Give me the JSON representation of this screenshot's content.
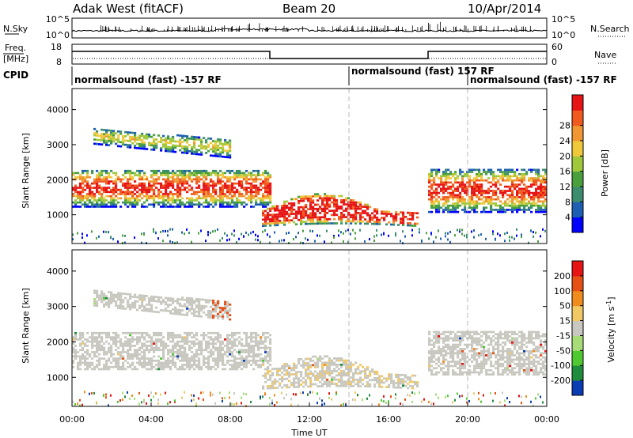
{
  "header": {
    "radar": "Adak West (fitACF)",
    "beam": "Beam 20",
    "date": "10/Apr/2014"
  },
  "noise_panel": {
    "left_label": "N.Sky",
    "right_label": "N.Search",
    "left_ticks": [
      "10^5",
      "10^0"
    ],
    "right_ticks": [
      "10^5",
      "10^0"
    ]
  },
  "freq_panel": {
    "left_label_1": "Freq.",
    "left_label_2": "[MHz]",
    "right_label": "Nave",
    "left_ticks": [
      "18",
      "8"
    ],
    "right_ticks": [
      "60",
      "0"
    ]
  },
  "cpid_panel": {
    "label": "CPID",
    "segments": [
      {
        "text": "normalsound (fast) -157 RF",
        "start_hour": 0
      },
      {
        "text": "normalsound (fast) 157 RF",
        "start_hour": 14
      },
      {
        "text": "normalsound (fast) -157 RF",
        "start_hour": 20
      }
    ]
  },
  "x_axis": {
    "label": "Time UT",
    "ticks": [
      "00:00",
      "04:00",
      "08:00",
      "12:00",
      "16:00",
      "20:00",
      "00:00"
    ],
    "tick_hours": [
      0,
      4,
      8,
      12,
      16,
      20,
      24
    ]
  },
  "chart_data": [
    {
      "type": "heatmap",
      "title": "Power",
      "xlabel": "Time UT",
      "ylabel": "Slant Range [km]",
      "xlim_hours": [
        0,
        24
      ],
      "ylim_km": [
        180,
        4600
      ],
      "y_ticks": [
        1000,
        2000,
        3000,
        4000
      ],
      "colorbar": {
        "label": "Power [dB]",
        "ticks": [
          4,
          8,
          12,
          16,
          20,
          24,
          28
        ],
        "range": [
          0,
          30
        ],
        "colors": [
          "#0000ff",
          "#1e5fb4",
          "#3c8c6e",
          "#4aa03c",
          "#a0c83c",
          "#f0c83c",
          "#f09632",
          "#f05a1e",
          "#e61414"
        ]
      },
      "features": [
        {
          "name": "upper-band",
          "t_start": 1.0,
          "t_end": 8.0,
          "range_km": [
            2700,
            3550
          ]
        },
        {
          "name": "mid-band-left",
          "t_start": 0.0,
          "t_end": 10.0,
          "range_km": [
            1200,
            2300
          ]
        },
        {
          "name": "day-band",
          "t_start": 9.5,
          "t_end": 17.5,
          "range_km": [
            600,
            1650
          ]
        },
        {
          "name": "mid-band-right",
          "t_start": 18.0,
          "t_end": 24.0,
          "range_km": [
            1050,
            2300
          ]
        }
      ]
    },
    {
      "type": "heatmap",
      "title": "Velocity",
      "xlabel": "Time UT",
      "ylabel": "Slant Range [km]",
      "xlim_hours": [
        0,
        24
      ],
      "ylim_km": [
        180,
        4600
      ],
      "y_ticks": [
        1000,
        2000,
        3000,
        4000
      ],
      "colorbar": {
        "label": "Velocity [m s^-1]",
        "ticks": [
          200,
          100,
          50,
          15,
          -15,
          -50,
          -100,
          -200
        ],
        "colors": [
          "#0a3cb4",
          "#1e8c3c",
          "#50c832",
          "#a8dc78",
          "#c8c8c0",
          "#f0c864",
          "#f08c1e",
          "#e65014",
          "#e61414"
        ]
      },
      "features": [
        {
          "name": "upper-band",
          "t_start": 1.0,
          "t_end": 8.0,
          "range_km": [
            2700,
            3550
          ]
        },
        {
          "name": "mid-band-left",
          "t_start": 0.0,
          "t_end": 10.0,
          "range_km": [
            1200,
            2300
          ]
        },
        {
          "name": "day-band",
          "t_start": 9.5,
          "t_end": 17.5,
          "range_km": [
            600,
            1650
          ]
        },
        {
          "name": "mid-band-right",
          "t_start": 18.0,
          "t_end": 24.0,
          "range_km": [
            1050,
            2300
          ]
        }
      ]
    }
  ]
}
